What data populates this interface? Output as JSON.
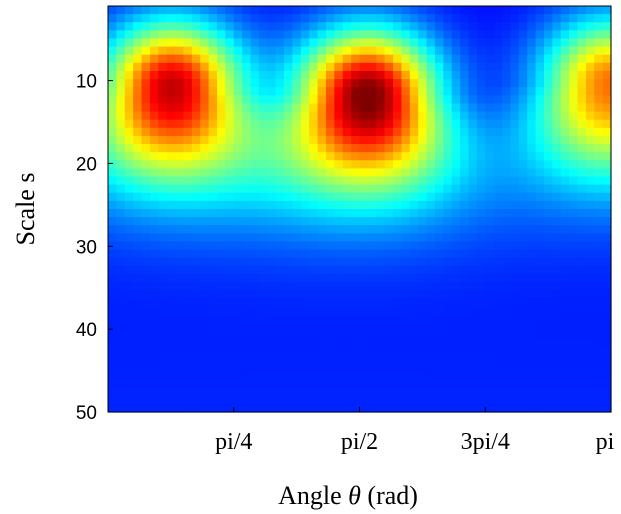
{
  "chart_data": {
    "type": "heatmap",
    "xlabel": "Angle θ (rad)",
    "xlabel_main": "Angle ",
    "xlabel_symbol": "θ",
    "xlabel_unit": " (rad)",
    "ylabel": "Scale s",
    "x_range": [
      0.0,
      3.1416
    ],
    "y_range": [
      1,
      50
    ],
    "y_reversed": true,
    "x_ticks": [
      {
        "value": 0.7854,
        "label": "pi/4"
      },
      {
        "value": 1.5708,
        "label": "pi/2"
      },
      {
        "value": 2.3562,
        "label": "3pi/4"
      },
      {
        "value": 3.1416,
        "label": "pi"
      }
    ],
    "y_ticks": [
      {
        "value": 10,
        "label": "10"
      },
      {
        "value": 20,
        "label": "20"
      },
      {
        "value": 30,
        "label": "30"
      },
      {
        "value": 40,
        "label": "40"
      },
      {
        "value": 50,
        "label": "50"
      }
    ],
    "colormap": "jet",
    "value_range": [
      0,
      1
    ],
    "grid": false,
    "legend": "none",
    "peaks": [
      {
        "angle": 0.4,
        "scale": 10.5,
        "intensity": 0.92
      },
      {
        "angle": 1.62,
        "scale": 11.5,
        "intensity": 1.0
      },
      {
        "angle": 3.14,
        "scale": 10.0,
        "intensity": 0.75
      }
    ]
  }
}
